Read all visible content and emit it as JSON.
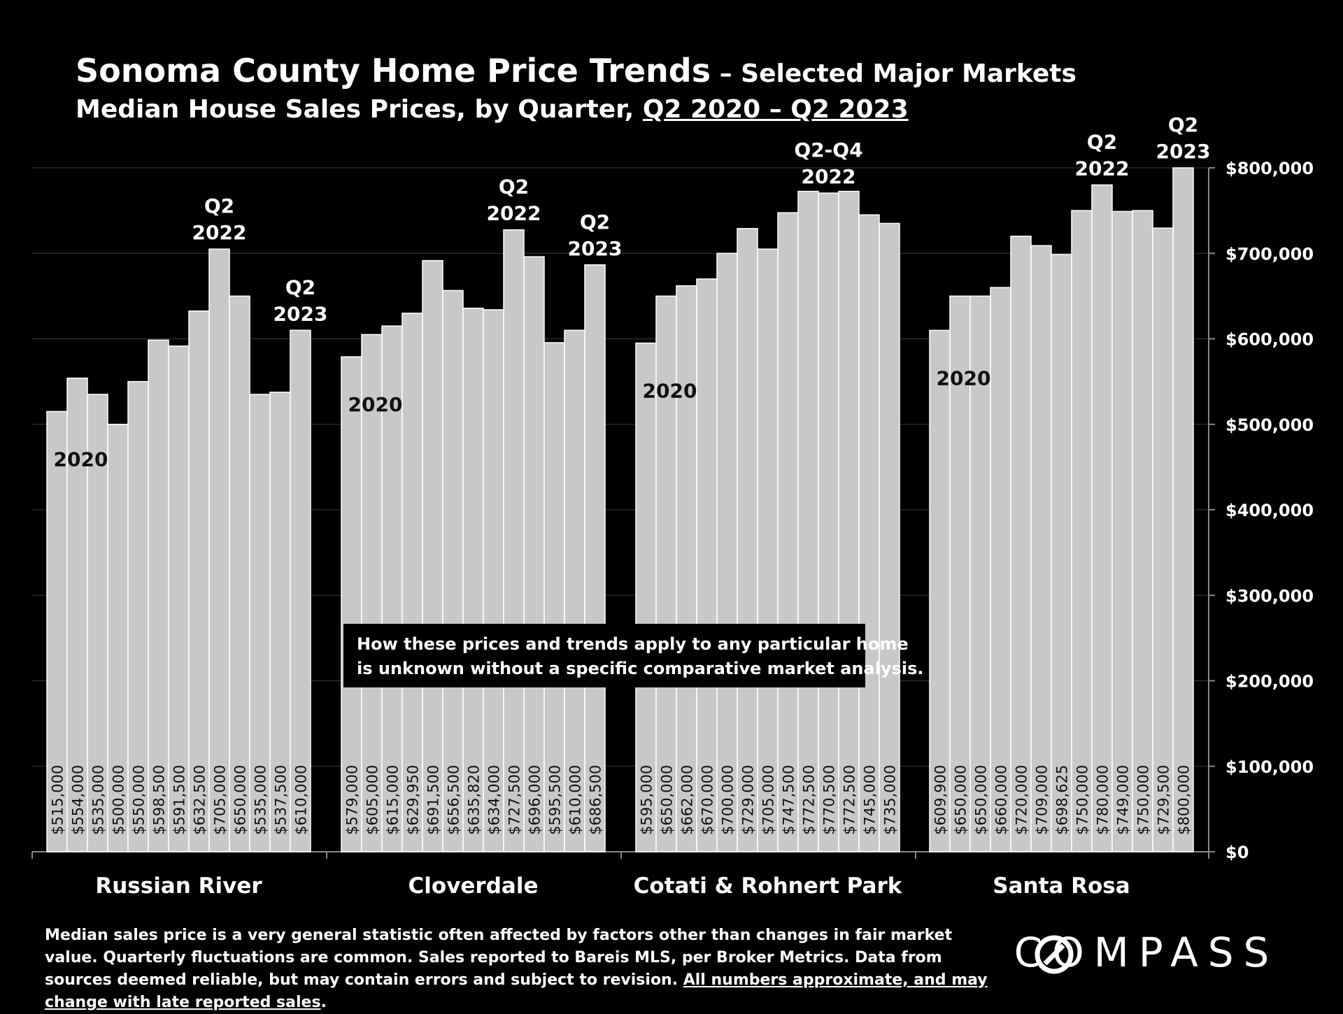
{
  "title": {
    "main": "Sonoma County Home Price Trends",
    "suffix": " – Selected Major Markets",
    "subtitle_prefix": "Median House Sales Prices, by Quarter, ",
    "subtitle_range": "Q2 2020 – Q2 2023"
  },
  "notice": {
    "line1": "How these prices and trends apply to any particular home",
    "line2": "is unknown without a specific comparative market analysis."
  },
  "footnote": {
    "text": "Median sales price is a very general statistic often affected by factors other than changes in fair market value. Quarterly fluctuations are common. Sales reported to Bareis MLS, per Broker Metrics. Data from sources deemed reliable, but may contain errors and subject to revision. ",
    "underlined": "All numbers approximate, and may change with late reported sales",
    "end": "."
  },
  "brand": {
    "name": "COMPASS"
  },
  "colors": {
    "background": "#000000",
    "bar": "#c8c8c8",
    "bar_border": "#ffffff",
    "text": "#ffffff",
    "grid": "#3a3a3a"
  },
  "chart_data": {
    "type": "bar",
    "title": "Sonoma County Home Price Trends – Selected Major Markets",
    "ylim": [
      0,
      800000
    ],
    "yticks": [
      0,
      100000,
      200000,
      300000,
      400000,
      500000,
      600000,
      700000,
      800000
    ],
    "ytick_labels": [
      "$0",
      "$100,000",
      "$200,000",
      "$300,000",
      "$400,000",
      "$500,000",
      "$600,000",
      "$700,000",
      "$800,000"
    ],
    "grid": true,
    "groups": [
      {
        "name": "Russian River",
        "values": [
          515000,
          554000,
          535000,
          500000,
          550000,
          598500,
          591500,
          632500,
          705000,
          650000,
          535000,
          537500,
          610000
        ],
        "labels": [
          "$515,000",
          "$554,000",
          "$535,000",
          "$500,000",
          "$550,000",
          "$598,500",
          "$591,500",
          "$632,500",
          "$705,000",
          "$650,000",
          "$535,000",
          "$537,500",
          "$610,000"
        ],
        "annotations": [
          {
            "index": 0,
            "lines": [
              "2020"
            ]
          },
          {
            "index": 8,
            "lines": [
              "Q2",
              "2022"
            ]
          },
          {
            "index": 12,
            "lines": [
              "Q2",
              "2023"
            ]
          }
        ]
      },
      {
        "name": "Cloverdale",
        "values": [
          579000,
          605000,
          615000,
          629950,
          691500,
          656500,
          635820,
          634000,
          727500,
          696000,
          595500,
          610000,
          686500
        ],
        "labels": [
          "$579,000",
          "$605,000",
          "$615,000",
          "$629,950",
          "$691,500",
          "$656,500",
          "$635,820",
          "$634,000",
          "$727,500",
          "$696,000",
          "$595,500",
          "$610,000",
          "$686,500"
        ],
        "annotations": [
          {
            "index": 0,
            "lines": [
              "2020"
            ]
          },
          {
            "index": 8,
            "lines": [
              "Q2",
              "2022"
            ]
          },
          {
            "index": 12,
            "lines": [
              "Q2",
              "2023"
            ]
          }
        ]
      },
      {
        "name": "Cotati & Rohnert Park",
        "values": [
          595000,
          650000,
          662000,
          670000,
          700000,
          729000,
          705000,
          747500,
          772500,
          770500,
          772500,
          745000,
          735000
        ],
        "labels": [
          "$595,000",
          "$650,000",
          "$662,000",
          "$670,000",
          "$700,000",
          "$729,000",
          "$705,000",
          "$747,500",
          "$772,500",
          "$770,500",
          "$772,500",
          "$745,000",
          "$735,000"
        ],
        "annotations": [
          {
            "index": 0,
            "lines": [
              "2020"
            ]
          },
          {
            "index": 9,
            "lines": [
              "Q2-Q4",
              "2022"
            ]
          }
        ]
      },
      {
        "name": "Santa Rosa",
        "values": [
          609900,
          650000,
          650000,
          660000,
          720000,
          709000,
          698625,
          750000,
          780000,
          749000,
          750000,
          729500,
          800000
        ],
        "labels": [
          "$609,900",
          "$650,000",
          "$650,000",
          "$660,000",
          "$720,000",
          "$709,000",
          "$698,625",
          "$750,000",
          "$780,000",
          "$749,000",
          "$750,000",
          "$729,500",
          "$800,000"
        ],
        "annotations": [
          {
            "index": 0,
            "lines": [
              "2020"
            ]
          },
          {
            "index": 8,
            "lines": [
              "Q2",
              "2022"
            ]
          },
          {
            "index": 12,
            "lines": [
              "Q2",
              "2023"
            ]
          }
        ]
      }
    ]
  }
}
